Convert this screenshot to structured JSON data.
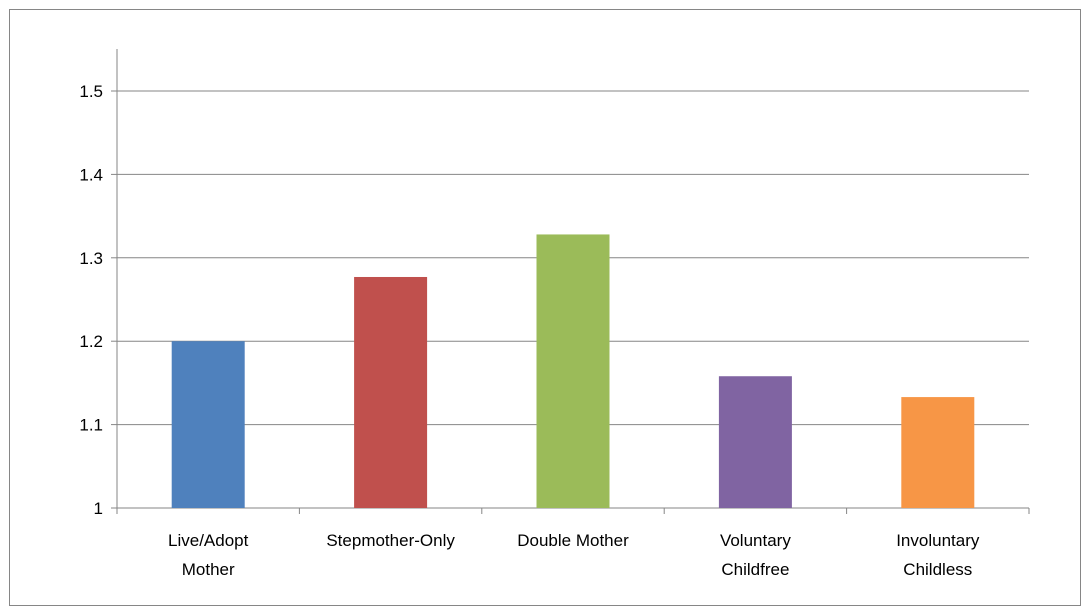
{
  "chart_data": {
    "type": "bar",
    "title": "",
    "xlabel": "",
    "ylabel": "",
    "categories": [
      [
        "Live/Adopt",
        "Mother"
      ],
      [
        "Stepmother-Only"
      ],
      [
        "Double Mother"
      ],
      [
        "Voluntary",
        "Childfree"
      ],
      [
        "Involuntary",
        "Childless"
      ]
    ],
    "values": [
      1.2,
      1.277,
      1.328,
      1.158,
      1.133
    ],
    "colors": [
      "#4f81bd",
      "#c0504d",
      "#9bbb59",
      "#8064a2",
      "#f79646"
    ],
    "ylim": [
      1,
      1.5
    ],
    "yticks": [
      "1",
      "1.1",
      "1.2",
      "1.3",
      "1.4",
      "1.5"
    ],
    "grid": true,
    "legend": "none"
  }
}
